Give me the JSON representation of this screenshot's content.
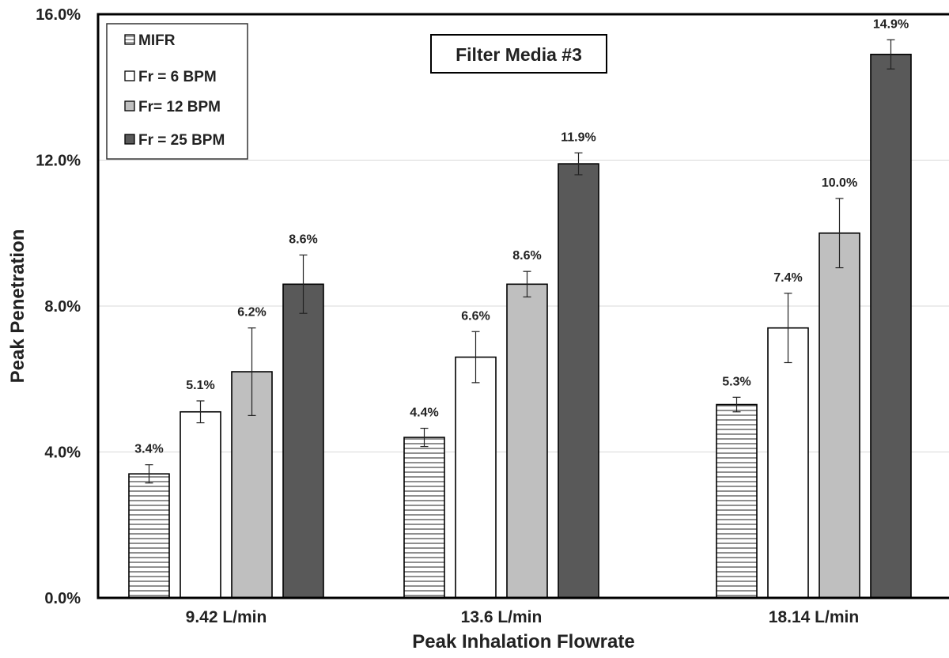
{
  "chart_data": {
    "type": "bar",
    "title": "Filter Media #3",
    "xlabel": "Peak Inhalation Flowrate",
    "ylabel": "Peak Penetration",
    "categories": [
      "9.42 L/min",
      "13.6 L/min",
      "18.14 L/min"
    ],
    "ylim": [
      0,
      16
    ],
    "yticks": [
      "0.0%",
      "4.0%",
      "8.0%",
      "12.0%",
      "16.0%"
    ],
    "ytick_values": [
      0,
      4,
      8,
      12,
      16
    ],
    "grid": true,
    "legend_position": "top-left",
    "series": [
      {
        "name": "MIFR",
        "fill": "hatch",
        "color": "#ffffff",
        "values": [
          3.4,
          4.4,
          5.3
        ],
        "errors": [
          0.25,
          0.25,
          0.2
        ],
        "labels": [
          "3.4%",
          "4.4%",
          "5.3%"
        ]
      },
      {
        "name": "Fr = 6 BPM",
        "fill": "solid",
        "color": "#ffffff",
        "values": [
          5.1,
          6.6,
          7.4
        ],
        "errors": [
          0.3,
          0.7,
          0.95
        ],
        "labels": [
          "5.1%",
          "6.6%",
          "7.4%"
        ]
      },
      {
        "name": "Fr= 12 BPM",
        "fill": "solid",
        "color": "#bfbfbf",
        "values": [
          6.2,
          8.6,
          10.0
        ],
        "errors": [
          1.2,
          0.35,
          0.95
        ],
        "labels": [
          "6.2%",
          "8.6%",
          "10.0%"
        ]
      },
      {
        "name": "Fr = 25 BPM",
        "fill": "solid",
        "color": "#595959",
        "values": [
          8.6,
          11.9,
          14.9
        ],
        "errors": [
          0.8,
          0.3,
          0.4
        ],
        "labels": [
          "8.6%",
          "11.9%",
          "14.9%"
        ]
      }
    ]
  }
}
